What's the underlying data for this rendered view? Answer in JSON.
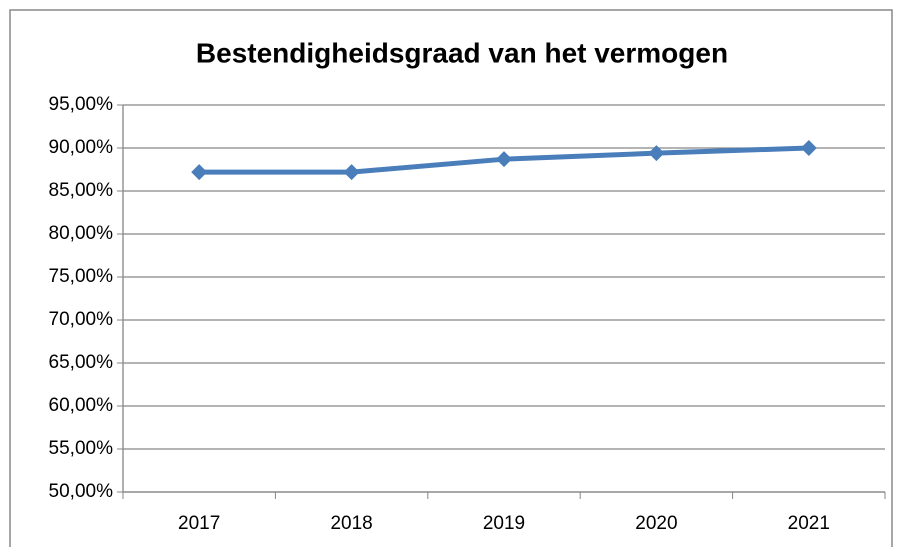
{
  "chart_data": {
    "type": "line",
    "title": "Bestendigheidsgraad van het vermogen",
    "categories": [
      "2017",
      "2018",
      "2019",
      "2020",
      "2021"
    ],
    "series": [
      {
        "name": "Bestendigheidsgraad",
        "color": "#4a7ebb",
        "values": [
          87.2,
          87.2,
          88.7,
          89.4,
          90.0
        ]
      }
    ],
    "ylim": [
      50,
      95
    ],
    "yticks": [
      {
        "value": 50,
        "label": "50,00%"
      },
      {
        "value": 55,
        "label": "55,00%"
      },
      {
        "value": 60,
        "label": "60,00%"
      },
      {
        "value": 65,
        "label": "65,00%"
      },
      {
        "value": 70,
        "label": "70,00%"
      },
      {
        "value": 75,
        "label": "75,00%"
      },
      {
        "value": 80,
        "label": "80,00%"
      },
      {
        "value": 85,
        "label": "85,00%"
      },
      {
        "value": 90,
        "label": "90,00%"
      },
      {
        "value": 95,
        "label": "95,00%"
      }
    ],
    "grid": true
  }
}
